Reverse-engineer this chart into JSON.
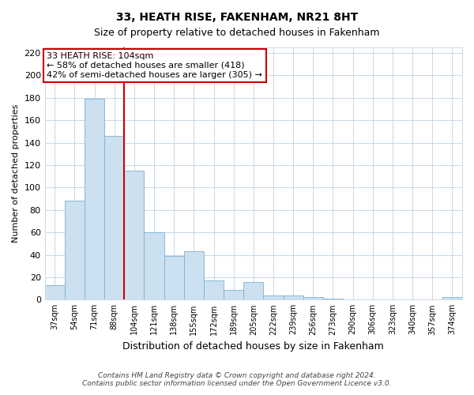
{
  "title": "33, HEATH RISE, FAKENHAM, NR21 8HT",
  "subtitle": "Size of property relative to detached houses in Fakenham",
  "xlabel": "Distribution of detached houses by size in Fakenham",
  "ylabel": "Number of detached properties",
  "categories": [
    "37sqm",
    "54sqm",
    "71sqm",
    "88sqm",
    "104sqm",
    "121sqm",
    "138sqm",
    "155sqm",
    "172sqm",
    "189sqm",
    "205sqm",
    "222sqm",
    "239sqm",
    "256sqm",
    "273sqm",
    "290sqm",
    "306sqm",
    "323sqm",
    "340sqm",
    "357sqm",
    "374sqm"
  ],
  "values": [
    13,
    88,
    179,
    146,
    115,
    60,
    39,
    43,
    17,
    9,
    16,
    4,
    4,
    2,
    1,
    0,
    0,
    0,
    0,
    0,
    2
  ],
  "bar_color": "#cce0f0",
  "bar_edge_color": "#7ab0d4",
  "vline_index": 4,
  "vline_color": "#cc0000",
  "ylim": [
    0,
    225
  ],
  "yticks": [
    0,
    20,
    40,
    60,
    80,
    100,
    120,
    140,
    160,
    180,
    200,
    220
  ],
  "annotation_line1": "33 HEATH RISE: 104sqm",
  "annotation_line2": "← 58% of detached houses are smaller (418)",
  "annotation_line3": "42% of semi-detached houses are larger (305) →",
  "annotation_box_color": "#ffffff",
  "annotation_box_edge": "#cc0000",
  "footer1": "Contains HM Land Registry data © Crown copyright and database right 2024.",
  "footer2": "Contains public sector information licensed under the Open Government Licence v3.0.",
  "background_color": "#ffffff",
  "grid_color": "#c8d8e8"
}
